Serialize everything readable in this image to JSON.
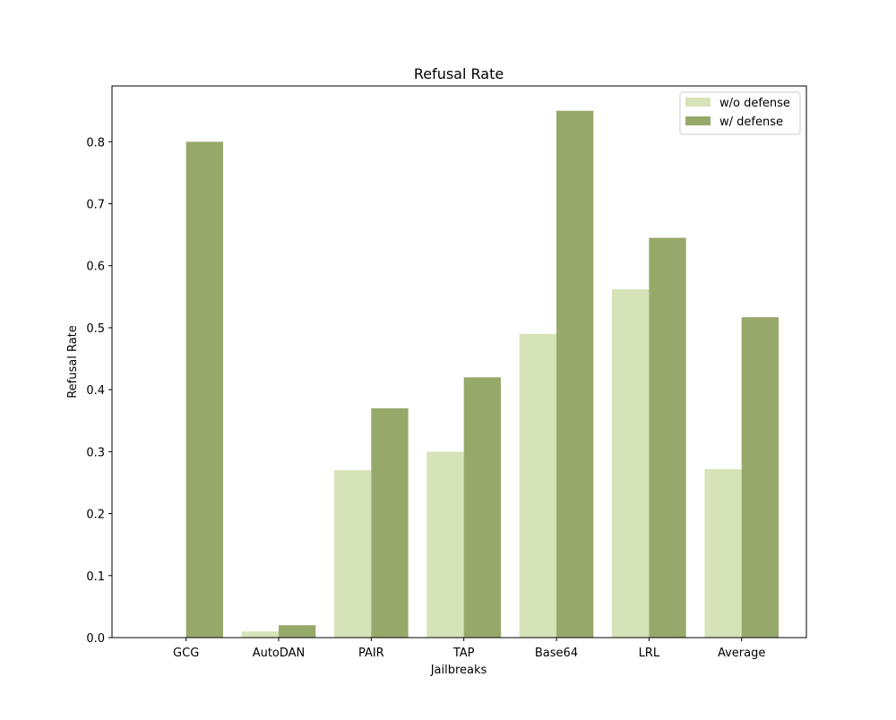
{
  "chart_data": {
    "type": "bar",
    "title": "Refusal Rate",
    "xlabel": "Jailbreaks",
    "ylabel": "Refusal Rate",
    "categories": [
      "GCG",
      "AutoDAN",
      "PAIR",
      "TAP",
      "Base64",
      "LRL",
      "Average"
    ],
    "series": [
      {
        "name": "w/o defense",
        "color": "#d6e3b8",
        "values": [
          0.0,
          0.01,
          0.27,
          0.3,
          0.49,
          0.562,
          0.272
        ]
      },
      {
        "name": "w/ defense",
        "color": "#97a96a",
        "values": [
          0.8,
          0.02,
          0.37,
          0.42,
          0.85,
          0.645,
          0.517
        ]
      }
    ],
    "ylim": [
      0,
      0.89
    ],
    "yticks": [
      0.0,
      0.1,
      0.2,
      0.3,
      0.4,
      0.5,
      0.6,
      0.7,
      0.8
    ],
    "ytick_labels": [
      "0.0",
      "0.1",
      "0.2",
      "0.3",
      "0.4",
      "0.5",
      "0.6",
      "0.7",
      "0.8"
    ],
    "grid": false,
    "legend_position": "top-right"
  }
}
